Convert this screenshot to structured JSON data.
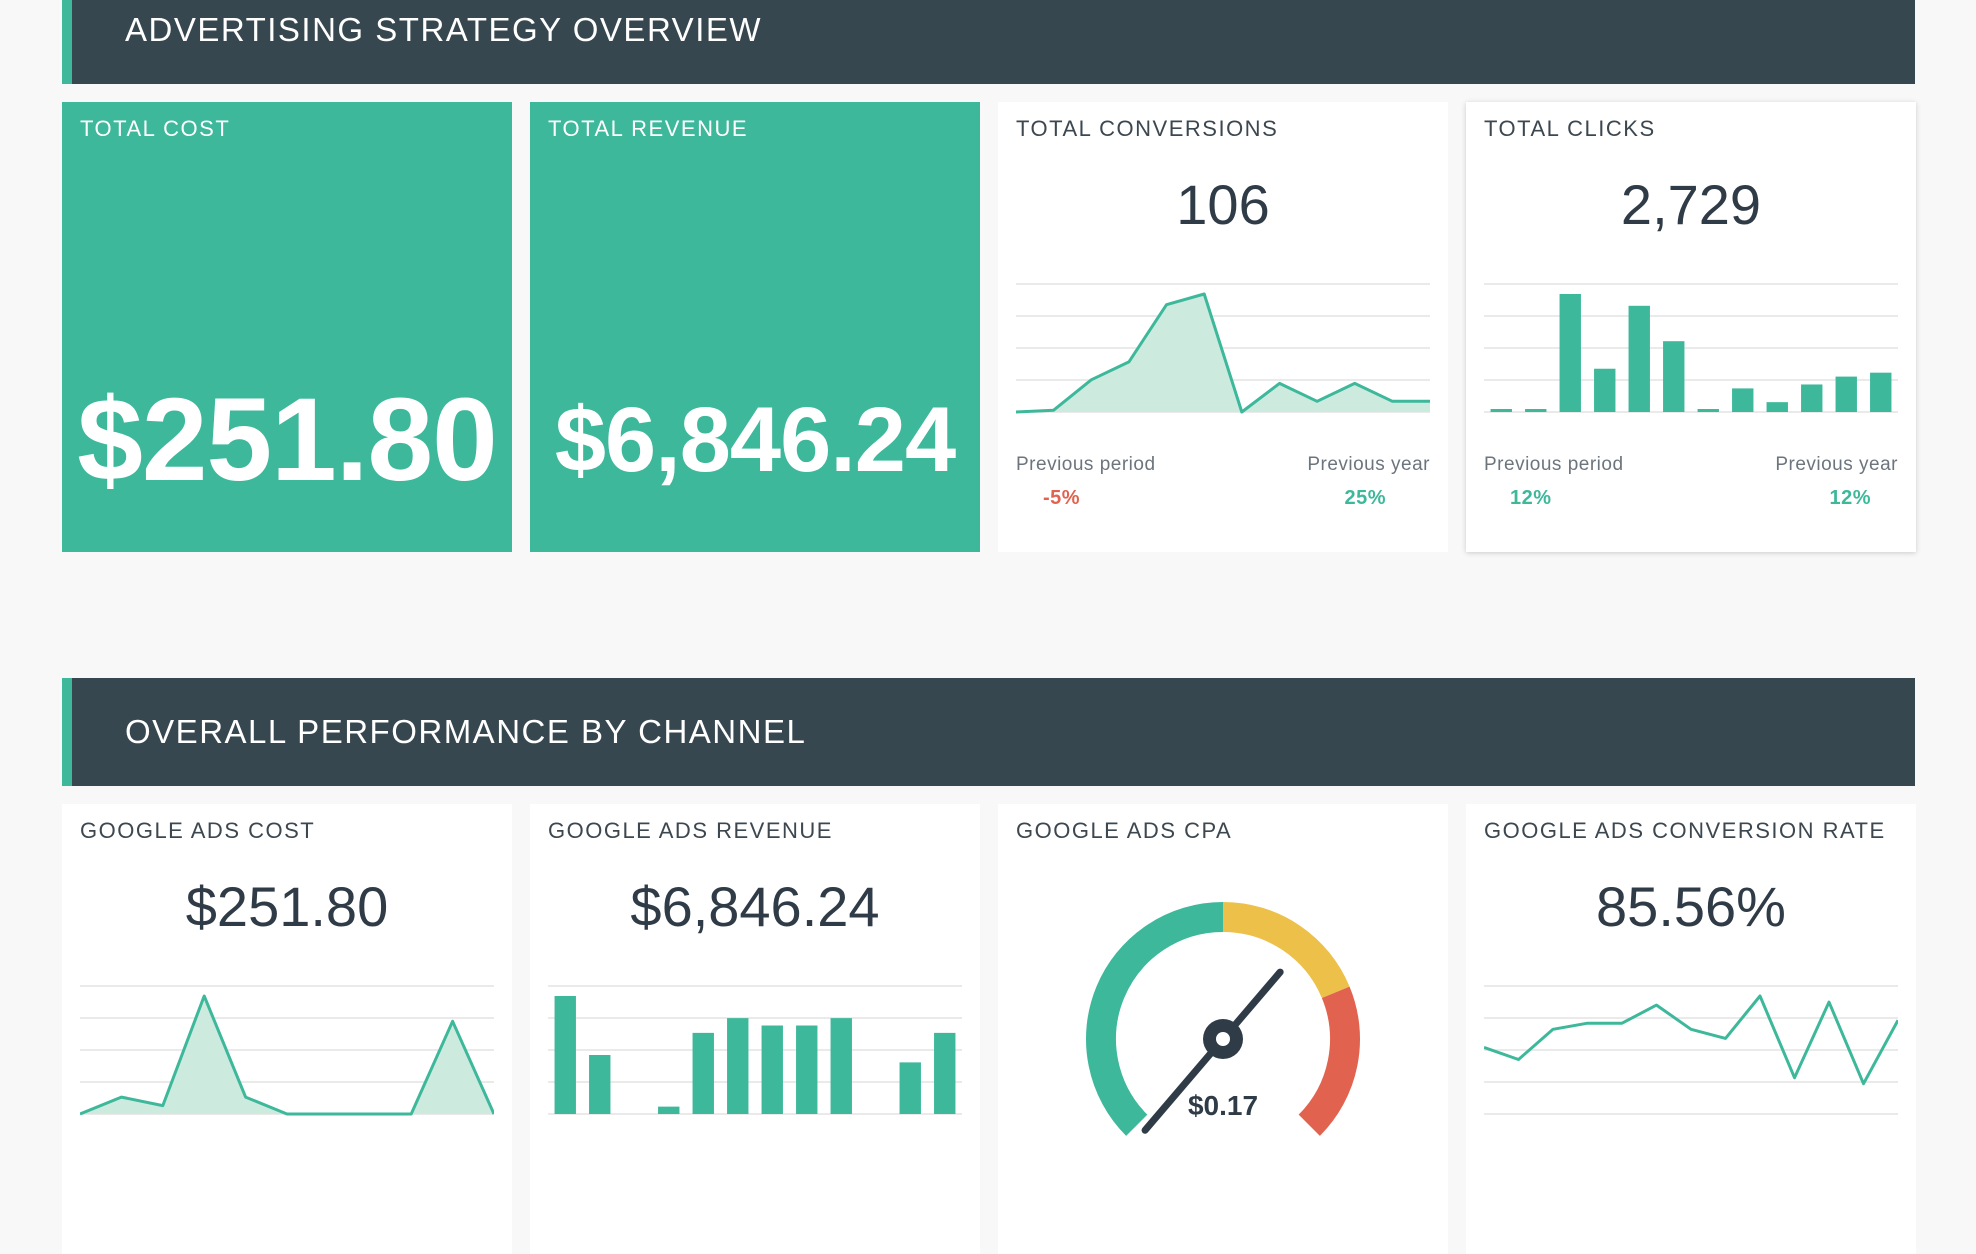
{
  "sections": {
    "overview": {
      "title": "ADVERTISING STRATEGY OVERVIEW"
    },
    "channel": {
      "title": "OVERALL PERFORMANCE BY CHANNEL"
    }
  },
  "kpis": {
    "total_cost": {
      "label": "TOTAL COST",
      "value": "$251.80"
    },
    "total_revenue": {
      "label": "TOTAL REVENUE",
      "value": "$6,846.24"
    },
    "total_conversions": {
      "label": "TOTAL CONVERSIONS",
      "value": "106",
      "prev_period_label": "Previous period",
      "prev_period_change": "-5%",
      "prev_year_label": "Previous year",
      "prev_year_change": "25%"
    },
    "total_clicks": {
      "label": "TOTAL CLICKS",
      "value": "2,729",
      "prev_period_label": "Previous period",
      "prev_period_change": "12%",
      "prev_year_label": "Previous year",
      "prev_year_change": "12%"
    }
  },
  "channel_cards": {
    "gads_cost": {
      "label": "GOOGLE ADS COST",
      "value": "$251.80"
    },
    "gads_revenue": {
      "label": "GOOGLE ADS REVENUE",
      "value": "$6,846.24"
    },
    "gads_cpa": {
      "label": "GOOGLE ADS CPA",
      "value": "$0.17"
    },
    "gads_conv_rate": {
      "label": "GOOGLE ADS CONVERSION RATE",
      "value": "85.56%"
    }
  },
  "colors": {
    "teal": "#3db89b",
    "teal_fill": "#cdeadf",
    "yellow": "#ecc049",
    "red": "#e1634f",
    "dark": "#37474f"
  },
  "chart_data": [
    {
      "type": "area",
      "series": [
        {
          "values": [
            0,
            0.5,
            9,
            14,
            30,
            33,
            0,
            8,
            3,
            8,
            3,
            3
          ]
        }
      ]
    },
    {
      "type": "bar",
      "series": [
        {
          "values": [
            1,
            1,
            60,
            22,
            54,
            36,
            1,
            12,
            5,
            14,
            18,
            20
          ]
        }
      ]
    },
    {
      "type": "area",
      "series": [
        {
          "values": [
            0,
            2,
            1,
            14,
            2,
            0,
            0,
            0,
            0,
            11,
            0
          ]
        }
      ]
    },
    {
      "type": "bar",
      "series": [
        {
          "values": [
            16,
            8,
            0,
            1,
            11,
            13,
            12,
            12,
            13,
            0,
            7,
            11
          ]
        }
      ]
    },
    {
      "type": "line",
      "series": [
        {
          "values": [
            22,
            18,
            28,
            30,
            30,
            36,
            28,
            25,
            39,
            12,
            37,
            10,
            31
          ]
        }
      ]
    }
  ],
  "gauge": {
    "value": "$0.17",
    "level": 0.65
  }
}
